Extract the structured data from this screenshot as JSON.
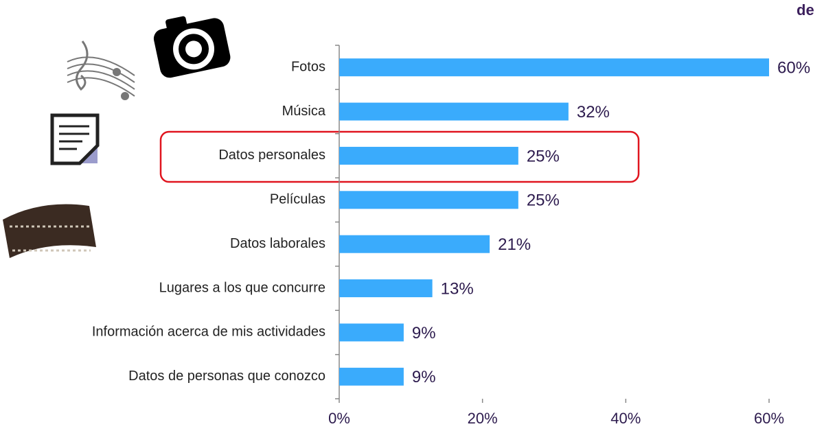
{
  "chart_data": {
    "type": "barh",
    "title": "de",
    "categories": [
      "Fotos",
      "Música",
      "Datos personales",
      "Películas",
      "Datos laborales",
      "Lugares a los que concurre",
      "Información acerca de mis actividades",
      "Datos de personas que conozco"
    ],
    "values": [
      60,
      32,
      25,
      25,
      21,
      13,
      9,
      9
    ],
    "value_labels": [
      "60%",
      "32%",
      "25%",
      "25%",
      "21%",
      "13%",
      "9%",
      "9%"
    ],
    "color": "#3aabfc",
    "xlim": [
      0,
      60
    ],
    "xticks": [
      {
        "value": 0,
        "label": "0%"
      },
      {
        "value": 20,
        "label": "20%"
      },
      {
        "value": 40,
        "label": "40%"
      },
      {
        "value": 60,
        "label": "60%"
      }
    ]
  }
}
